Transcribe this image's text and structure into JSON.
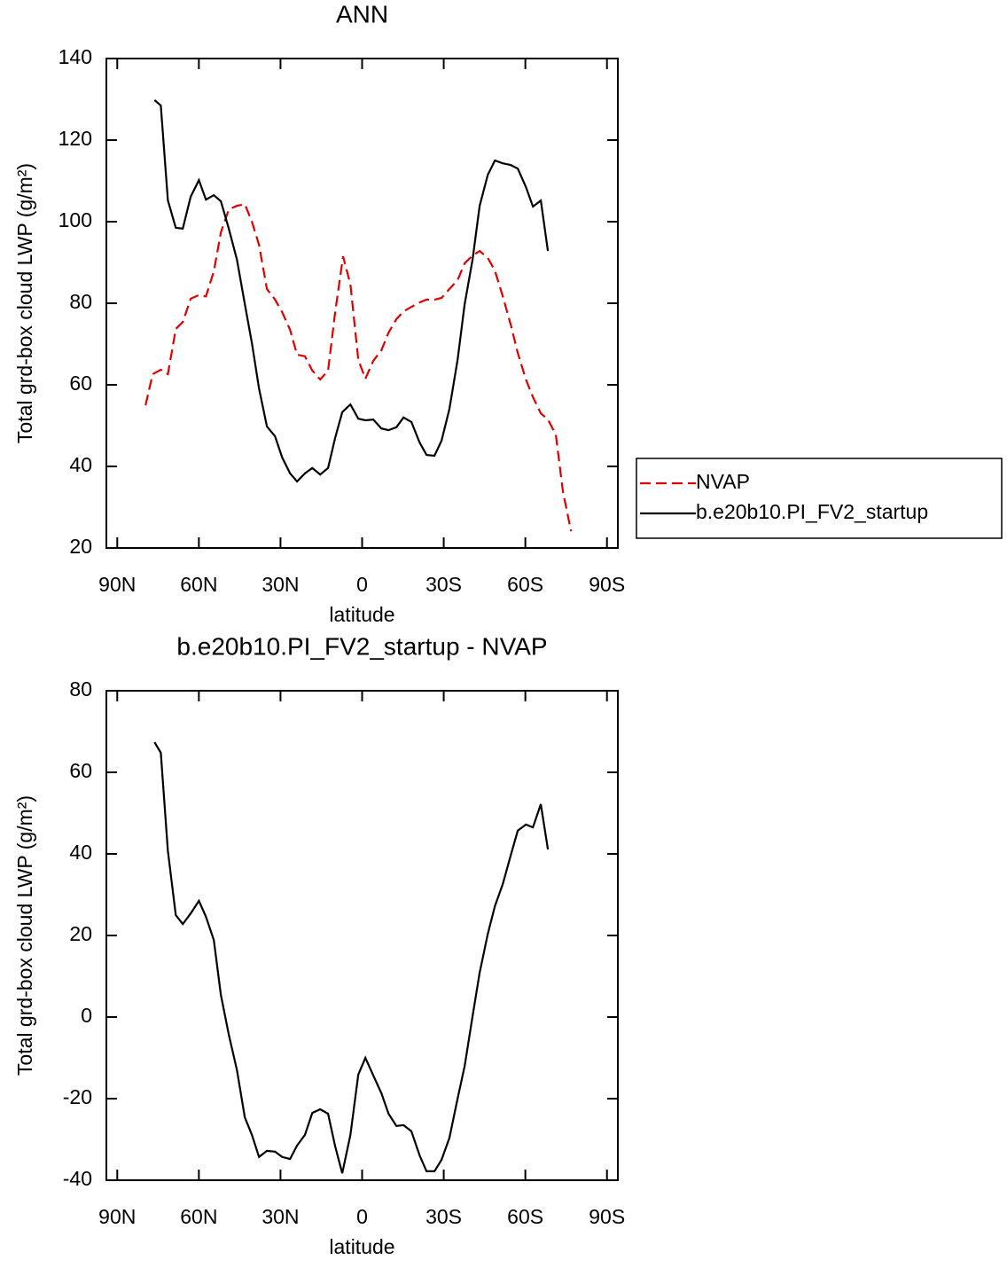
{
  "chart_data": [
    {
      "type": "line",
      "title": "ANN",
      "xlabel": "latitude",
      "ylabel": "Total grd-box cloud LWP (g/m²)",
      "xlim": [
        94,
        -94
      ],
      "ylim": [
        20,
        140
      ],
      "xticks": [
        {
          "value": 90,
          "label": "90N"
        },
        {
          "value": 60,
          "label": "60N"
        },
        {
          "value": 30,
          "label": "30N"
        },
        0,
        {
          "value": -30,
          "label": "30S"
        },
        {
          "value": -60,
          "label": "60S"
        },
        {
          "value": -90,
          "label": "90S"
        }
      ],
      "yticks": [
        20,
        40,
        60,
        80,
        100,
        120,
        140
      ],
      "legend": "right",
      "series": [
        {
          "name": "NVAP",
          "color": "#e00000",
          "style": "dashed",
          "x": [
            79.6,
            77.0,
            74.0,
            71.4,
            68.5,
            65.9,
            63.0,
            60.0,
            57.4,
            54.5,
            51.9,
            49.0,
            46.0,
            43.1,
            40.5,
            37.9,
            35.0,
            32.0,
            29.4,
            26.5,
            23.9,
            21.0,
            18.3,
            15.4,
            12.5,
            9.9,
            7.0,
            4.3,
            1.4,
            -1.2,
            -4.1,
            -7.1,
            -9.7,
            -12.6,
            -15.2,
            -18.1,
            -21.1,
            -23.7,
            -26.6,
            -29.2,
            -32.1,
            -35.1,
            -37.7,
            -40.6,
            -43.2,
            -46.2,
            -48.8,
            -51.7,
            -54.6,
            -57.2,
            -60.2,
            -62.8,
            -65.7,
            -68.3,
            -71.2,
            -73.8,
            -76.8
          ],
          "values": [
            55,
            62.6,
            63.7,
            62.6,
            73.7,
            75.4,
            81.1,
            82,
            81.7,
            87.8,
            97.4,
            103,
            103.9,
            104.3,
            100,
            94.3,
            83.5,
            80.9,
            77.8,
            73.5,
            67.4,
            67,
            63.5,
            61.3,
            63.5,
            77.8,
            91.5,
            84.6,
            66.1,
            61.5,
            65.9,
            68.5,
            72.8,
            76.1,
            78,
            79.1,
            80.2,
            80.9,
            80.9,
            81.3,
            83.5,
            85.7,
            89.8,
            91.7,
            92.8,
            91.1,
            88,
            81.7,
            74.8,
            67.8,
            61.3,
            57,
            53,
            51.5,
            47.8,
            33.9,
            24.1
          ]
        },
        {
          "name": "b.e20b10.PI_FV2_startup",
          "color": "#000000",
          "style": "solid",
          "x": [
            76.3,
            74.0,
            71.4,
            68.5,
            65.9,
            63.0,
            60.0,
            57.4,
            54.5,
            51.9,
            49.0,
            46.0,
            43.1,
            40.5,
            37.9,
            35.0,
            32.0,
            29.4,
            26.5,
            23.9,
            21.0,
            18.3,
            15.4,
            12.5,
            9.9,
            7.3,
            4.3,
            1.4,
            -1.2,
            -4.1,
            -7.1,
            -9.7,
            -12.6,
            -15.2,
            -18.1,
            -21.1,
            -23.7,
            -26.6,
            -29.2,
            -32.1,
            -35.1,
            -37.7,
            -40.6,
            -43.2,
            -46.2,
            -48.8,
            -51.7,
            -54.6,
            -57.2,
            -60.2,
            -62.8,
            -65.7,
            -68.3
          ],
          "values": [
            129.8,
            128.5,
            105.2,
            98.5,
            98.3,
            106.1,
            110.2,
            105.4,
            106.5,
            105,
            98.3,
            90.7,
            79.8,
            70.2,
            59.1,
            49.8,
            47.4,
            42.2,
            38.3,
            36.3,
            38.3,
            39.6,
            38,
            39.6,
            47,
            53.3,
            55.2,
            51.7,
            51.3,
            51.5,
            49.3,
            48.9,
            49.6,
            52,
            50.9,
            45.9,
            42.8,
            42.6,
            46.3,
            54.1,
            66.1,
            79.8,
            90.7,
            103.9,
            111.5,
            115,
            114.3,
            113.9,
            113,
            108.5,
            103.7,
            105.2,
            92.8
          ]
        }
      ]
    },
    {
      "type": "line",
      "title": "b.e20b10.PI_FV2_startup - NVAP",
      "xlabel": "latitude",
      "ylabel": "Total grd-box cloud LWP (g/m²)",
      "xlim": [
        94,
        -94
      ],
      "ylim": [
        -40,
        80
      ],
      "xticks": [
        {
          "value": 90,
          "label": "90N"
        },
        {
          "value": 60,
          "label": "60N"
        },
        {
          "value": 30,
          "label": "30N"
        },
        0,
        {
          "value": -30,
          "label": "30S"
        },
        {
          "value": -60,
          "label": "60S"
        },
        {
          "value": -90,
          "label": "90S"
        }
      ],
      "yticks": [
        -40,
        -20,
        0,
        20,
        40,
        60,
        80
      ],
      "series": [
        {
          "color": "#000000",
          "style": "solid",
          "x": [
            76.3,
            74.0,
            71.4,
            68.5,
            65.9,
            63.0,
            60.0,
            57.4,
            54.5,
            51.9,
            49.0,
            46.0,
            43.1,
            40.5,
            37.9,
            35.0,
            32.0,
            29.4,
            26.5,
            23.9,
            21.0,
            18.3,
            15.4,
            12.5,
            9.9,
            7.3,
            4.3,
            1.4,
            -1.2,
            -4.1,
            -7.1,
            -9.7,
            -12.6,
            -15.2,
            -18.1,
            -21.1,
            -23.7,
            -26.6,
            -29.2,
            -32.1,
            -35.1,
            -37.7,
            -40.6,
            -43.2,
            -46.2,
            -48.8,
            -51.7,
            -54.6,
            -57.2,
            -60.2,
            -62.8,
            -65.7,
            -68.3
          ],
          "values": [
            67.4,
            64.8,
            40.7,
            25,
            22.8,
            25.4,
            28.5,
            24.6,
            18.9,
            5.4,
            -4.3,
            -13,
            -24.6,
            -28.9,
            -34.3,
            -32.8,
            -33,
            -34.3,
            -34.8,
            -31.5,
            -28.9,
            -23.5,
            -22.6,
            -23.7,
            -31.7,
            -38.3,
            -28.9,
            -14.1,
            -10,
            -14.3,
            -18.7,
            -23.7,
            -26.7,
            -26.5,
            -28,
            -33.9,
            -37.8,
            -37.8,
            -35,
            -29.6,
            -20,
            -12,
            0.2,
            10.9,
            20.4,
            27.2,
            32.6,
            39.6,
            45.7,
            47.2,
            46.5,
            52.2,
            41.1
          ]
        }
      ]
    }
  ]
}
